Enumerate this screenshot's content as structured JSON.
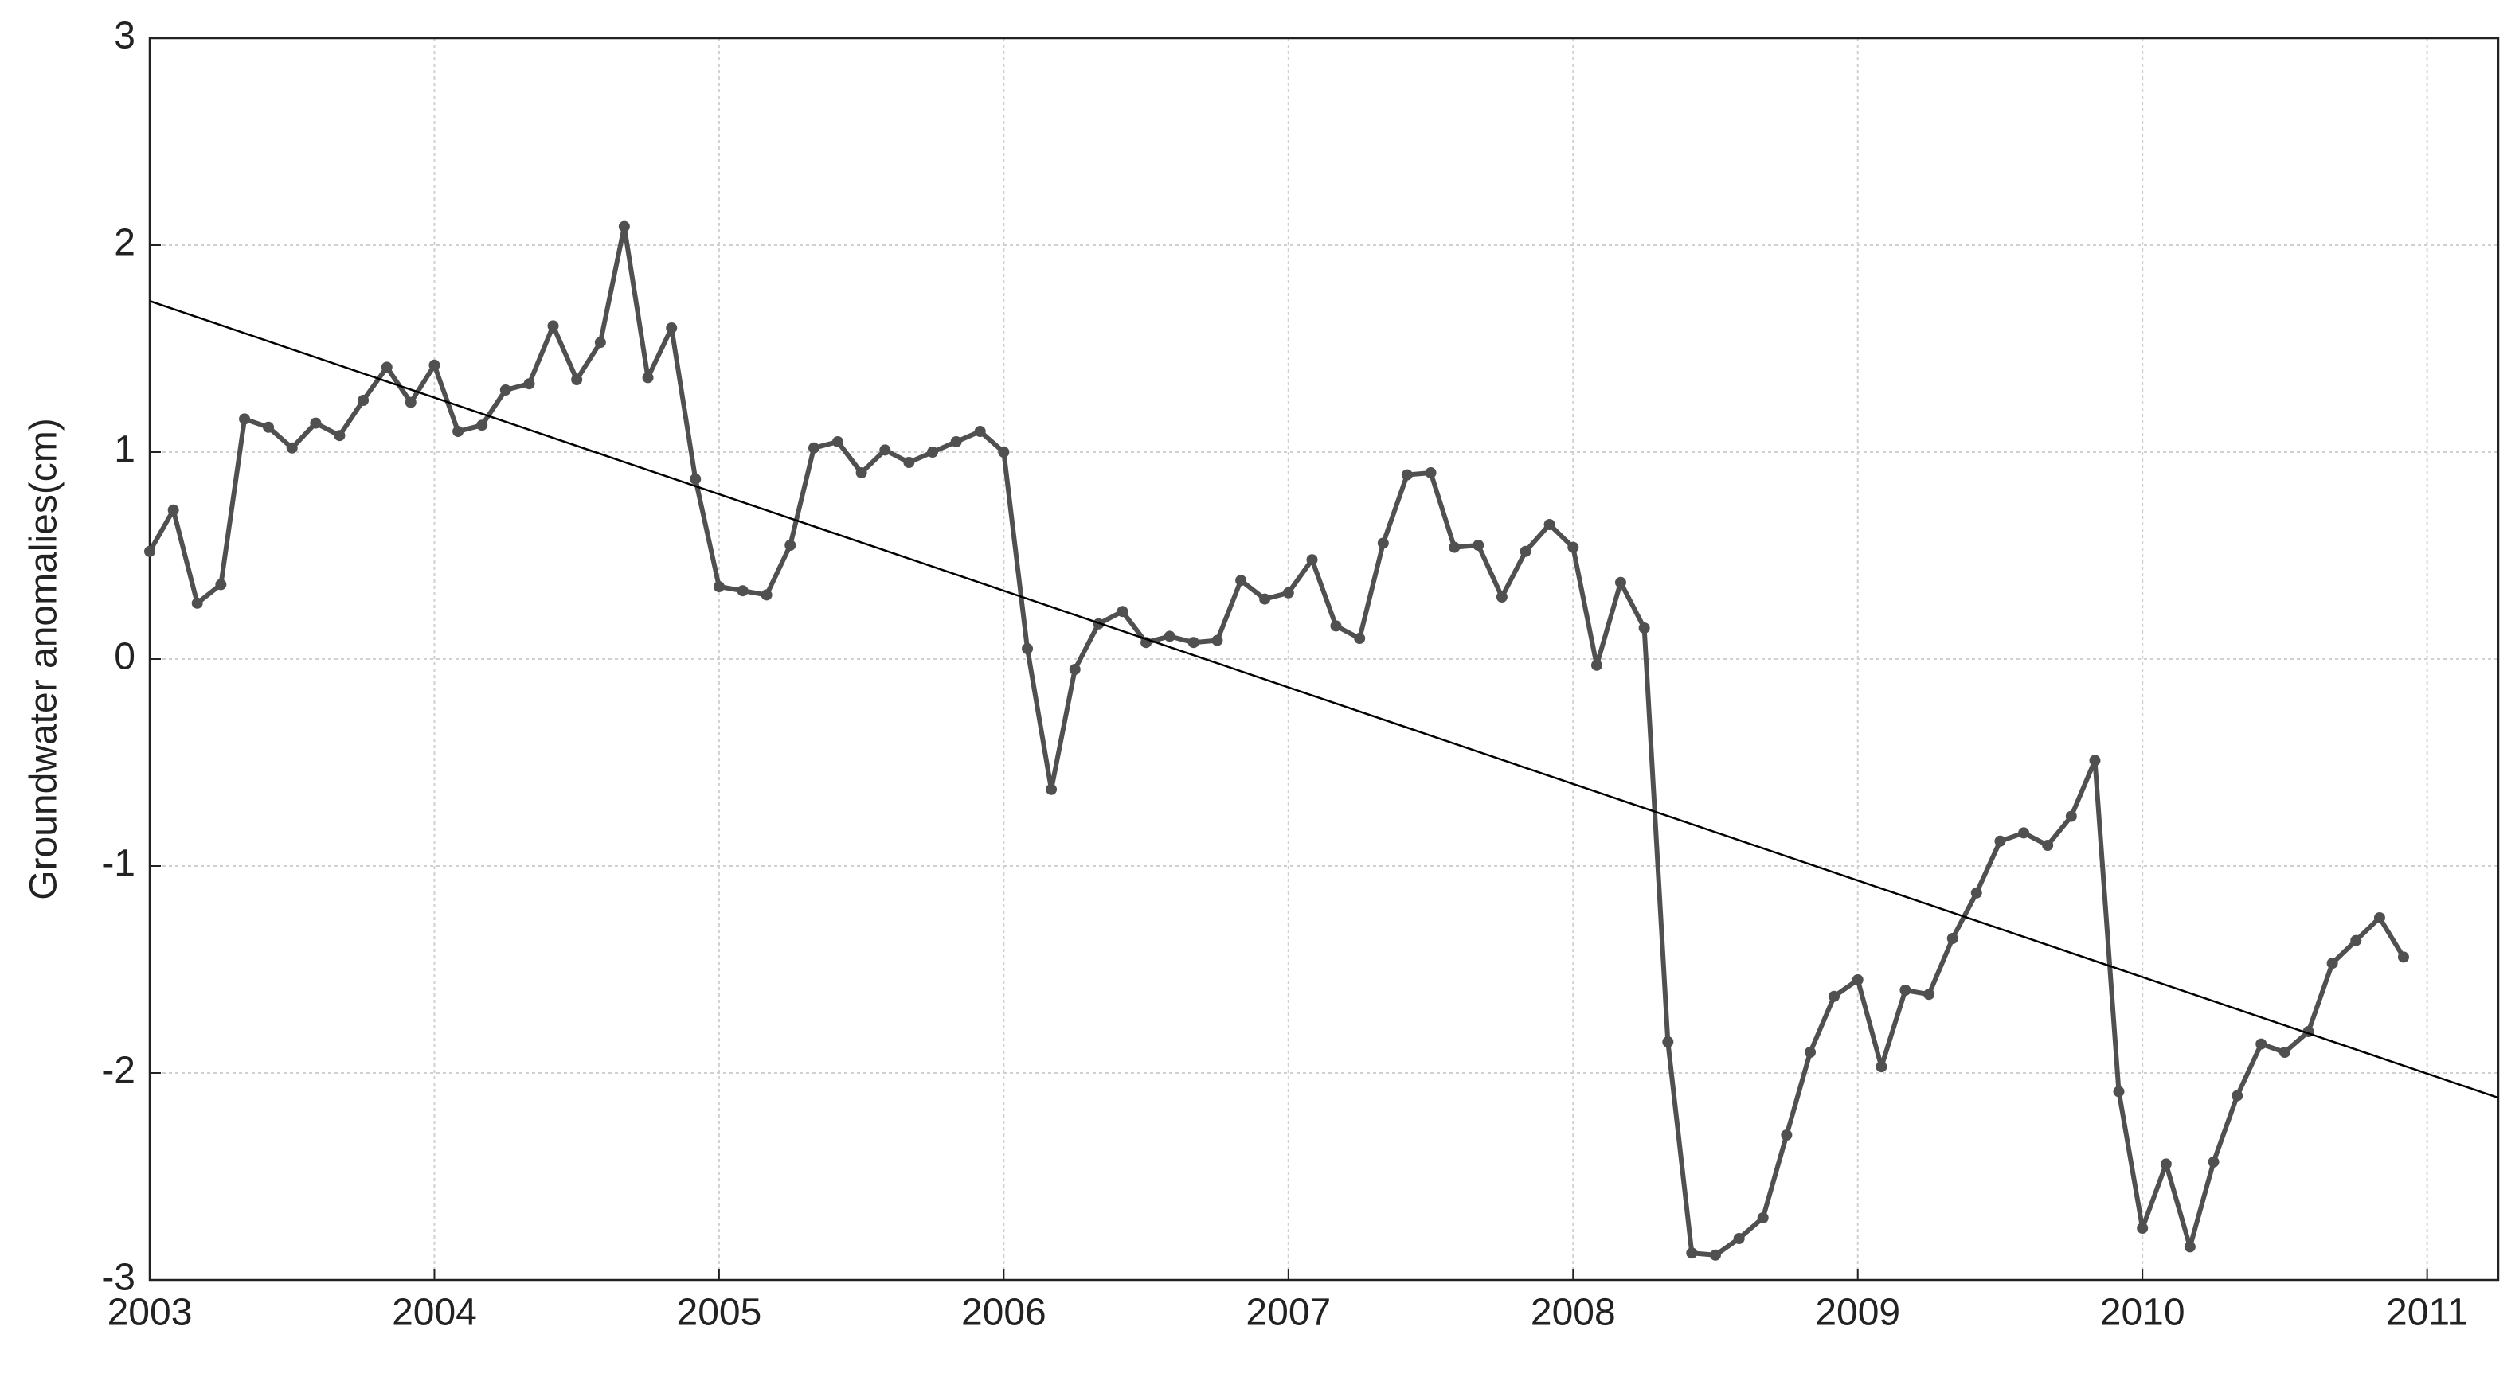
{
  "chart_data": {
    "type": "line",
    "ylabel": "Groundwater anomalies(cm)",
    "xlim": [
      2003,
      2011.25
    ],
    "ylim": [
      -3,
      3
    ],
    "xticks": [
      2003,
      2004,
      2005,
      2006,
      2007,
      2008,
      2009,
      2010,
      2011
    ],
    "yticks": [
      -3,
      -2,
      -1,
      0,
      1,
      2,
      3
    ],
    "grid": true,
    "series": [
      {
        "color": "#505050",
        "markers": true,
        "x": [
          2003,
          2003.083,
          2003.167,
          2003.25,
          2003.333,
          2003.417,
          2003.5,
          2003.583,
          2003.667,
          2003.75,
          2003.833,
          2003.917,
          2004,
          2004.083,
          2004.167,
          2004.25,
          2004.333,
          2004.417,
          2004.5,
          2004.583,
          2004.667,
          2004.75,
          2004.833,
          2004.917,
          2005,
          2005.083,
          2005.167,
          2005.25,
          2005.333,
          2005.417,
          2005.5,
          2005.583,
          2005.667,
          2005.75,
          2005.833,
          2005.917,
          2006,
          2006.083,
          2006.167,
          2006.25,
          2006.333,
          2006.417,
          2006.5,
          2006.583,
          2006.667,
          2006.75,
          2006.833,
          2006.917,
          2007,
          2007.083,
          2007.167,
          2007.25,
          2007.333,
          2007.417,
          2007.5,
          2007.583,
          2007.667,
          2007.75,
          2007.833,
          2007.917,
          2008,
          2008.083,
          2008.167,
          2008.25,
          2008.333,
          2008.417,
          2008.5,
          2008.583,
          2008.667,
          2008.75,
          2008.833,
          2008.917,
          2009,
          2009.083,
          2009.167,
          2009.25,
          2009.333,
          2009.417,
          2009.5,
          2009.583,
          2009.667,
          2009.75,
          2009.833,
          2009.917,
          2010,
          2010.083,
          2010.167,
          2010.25,
          2010.333,
          2010.417,
          2010.5,
          2010.583,
          2010.667,
          2010.75,
          2010.833,
          2010.917
        ],
        "values": [
          0.52,
          0.72,
          0.27,
          0.36,
          1.16,
          1.12,
          1.02,
          1.14,
          1.08,
          1.25,
          1.41,
          1.24,
          1.42,
          1.1,
          1.13,
          1.3,
          1.33,
          1.61,
          1.35,
          1.53,
          2.09,
          1.36,
          1.6,
          0.87,
          0.35,
          0.33,
          0.31,
          0.55,
          1.02,
          1.05,
          0.9,
          1.01,
          0.95,
          1.0,
          1.05,
          1.1,
          1.0,
          0.05,
          -0.63,
          -0.05,
          0.17,
          0.23,
          0.08,
          0.11,
          0.08,
          0.09,
          0.38,
          0.29,
          0.32,
          0.48,
          0.16,
          0.1,
          0.56,
          0.89,
          0.9,
          0.54,
          0.55,
          0.3,
          0.52,
          0.65,
          0.54,
          -0.03,
          0.37,
          0.15,
          -1.85,
          -2.87,
          -2.88,
          -2.8,
          -2.7,
          -2.3,
          -1.9,
          -1.63,
          -1.55,
          -1.97,
          -1.6,
          -1.62,
          -1.35,
          -1.13,
          -0.88,
          -0.84,
          -0.9,
          -0.76,
          -0.49,
          -2.09,
          -2.75,
          -2.44,
          -2.84,
          -2.43,
          -2.11,
          -1.86,
          -1.9,
          -1.8,
          -1.47,
          -1.36,
          -1.25,
          -1.44
        ]
      },
      {
        "color": "#000000",
        "markers": false,
        "x": [
          2003,
          2011.25
        ],
        "values": [
          1.73,
          -2.12
        ]
      }
    ]
  }
}
